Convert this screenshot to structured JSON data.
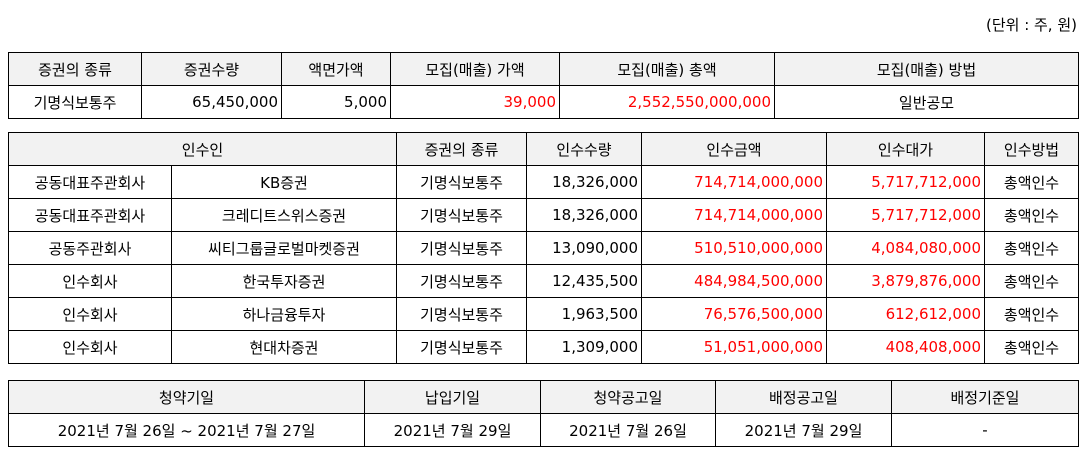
{
  "unit_label": "(단위 : 주, 원)",
  "securities": {
    "headers": [
      "증권의 종류",
      "증권수량",
      "액면가액",
      "모집(매출) 가액",
      "모집(매출) 총액",
      "모집(매출) 방법"
    ],
    "row": [
      "기명식보통주",
      "65,450,000",
      "5,000",
      "39,000",
      "2,552,550,000,000",
      "일반공모"
    ]
  },
  "underwriters": {
    "headers": [
      "인수인",
      "증권의 종류",
      "인수수량",
      "인수금액",
      "인수대가",
      "인수방법"
    ],
    "rows": [
      [
        "공동대표주관회사",
        "KB증권",
        "기명식보통주",
        "18,326,000",
        "714,714,000,000",
        "5,717,712,000",
        "총액인수"
      ],
      [
        "공동대표주관회사",
        "크레디트스위스증권",
        "기명식보통주",
        "18,326,000",
        "714,714,000,000",
        "5,717,712,000",
        "총액인수"
      ],
      [
        "공동주관회사",
        "씨티그룹글로벌마켓증권",
        "기명식보통주",
        "13,090,000",
        "510,510,000,000",
        "4,084,080,000",
        "총액인수"
      ],
      [
        "인수회사",
        "한국투자증권",
        "기명식보통주",
        "12,435,500",
        "484,984,500,000",
        "3,879,876,000",
        "총액인수"
      ],
      [
        "인수회사",
        "하나금융투자",
        "기명식보통주",
        "1,963,500",
        "76,576,500,000",
        "612,612,000",
        "총액인수"
      ],
      [
        "인수회사",
        "현대차증권",
        "기명식보통주",
        "1,309,000",
        "51,051,000,000",
        "408,408,000",
        "총액인수"
      ]
    ]
  },
  "schedule": {
    "headers": [
      "청약기일",
      "납입기일",
      "청약공고일",
      "배정공고일",
      "배정기준일"
    ],
    "row": [
      "2021년 7월 26일 ~ 2021년 7월 27일",
      "2021년 7월 29일",
      "2021년 7월 26일",
      "2021년 7월 29일",
      "-"
    ]
  },
  "colors": {
    "highlight": "#ff0000",
    "header_bg": "#f2f2f2"
  }
}
